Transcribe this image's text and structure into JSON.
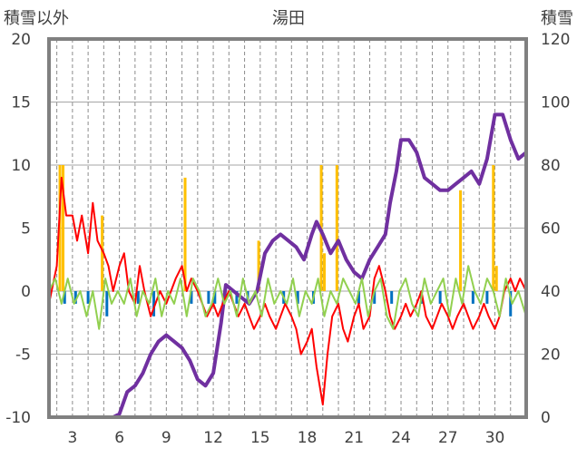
{
  "chart_data": {
    "type": "line",
    "title": "湯田",
    "y_left": {
      "label": "積雪以外",
      "range": [
        -10,
        20
      ],
      "ticks": [
        -10,
        -5,
        0,
        5,
        10,
        15,
        20
      ]
    },
    "y_right": {
      "label": "積雪",
      "range": [
        0,
        120
      ],
      "ticks": [
        0,
        20,
        40,
        60,
        80,
        100,
        120
      ]
    },
    "x": {
      "range": [
        1.5,
        32
      ],
      "tick_values": [
        3,
        6,
        9,
        12,
        15,
        18,
        21,
        24,
        27,
        30
      ],
      "tick_labels": [
        "3",
        "6",
        "9",
        "12",
        "15",
        "18",
        "21",
        "24",
        "27",
        "30"
      ]
    },
    "grid": {
      "horizontal": "solid",
      "vertical": "dashed-daily"
    },
    "colors": {
      "snow": "#7030A0",
      "red": "#FF0000",
      "green": "#92D050",
      "blue": "#0070C0",
      "orange": "#FFC000",
      "frame": "#808080"
    },
    "series": [
      {
        "axis": "right",
        "color": "#7030A0",
        "style": "thick-line",
        "points": [
          [
            1.5,
            0
          ],
          [
            5.6,
            0
          ],
          [
            6.0,
            1
          ],
          [
            6.5,
            8
          ],
          [
            7.0,
            10
          ],
          [
            7.5,
            14
          ],
          [
            8.0,
            20
          ],
          [
            8.5,
            24
          ],
          [
            9.0,
            26
          ],
          [
            9.5,
            24
          ],
          [
            10.0,
            22
          ],
          [
            10.5,
            18
          ],
          [
            11.0,
            12
          ],
          [
            11.5,
            10
          ],
          [
            12.0,
            14
          ],
          [
            12.5,
            30
          ],
          [
            12.8,
            42
          ],
          [
            13.3,
            40
          ],
          [
            13.8,
            38
          ],
          [
            14.3,
            36
          ],
          [
            14.8,
            40
          ],
          [
            15.3,
            52
          ],
          [
            15.8,
            56
          ],
          [
            16.3,
            58
          ],
          [
            16.8,
            56
          ],
          [
            17.3,
            54
          ],
          [
            17.8,
            50
          ],
          [
            18.3,
            58
          ],
          [
            18.6,
            62
          ],
          [
            19.0,
            58
          ],
          [
            19.5,
            52
          ],
          [
            20.0,
            56
          ],
          [
            20.5,
            50
          ],
          [
            21.0,
            46
          ],
          [
            21.5,
            44
          ],
          [
            22.0,
            50
          ],
          [
            22.5,
            54
          ],
          [
            23.0,
            58
          ],
          [
            23.3,
            68
          ],
          [
            23.7,
            78
          ],
          [
            24.0,
            88
          ],
          [
            24.5,
            88
          ],
          [
            25.0,
            84
          ],
          [
            25.5,
            76
          ],
          [
            26.0,
            74
          ],
          [
            26.5,
            72
          ],
          [
            27.0,
            72
          ],
          [
            27.5,
            74
          ],
          [
            28.0,
            76
          ],
          [
            28.5,
            78
          ],
          [
            29.0,
            74
          ],
          [
            29.5,
            82
          ],
          [
            30.0,
            96
          ],
          [
            30.5,
            96
          ],
          [
            31.0,
            88
          ],
          [
            31.5,
            82
          ],
          [
            32.0,
            84
          ]
        ]
      },
      {
        "axis": "left",
        "color": "#FF0000",
        "style": "thin-line",
        "points": [
          [
            1.5,
            -1
          ],
          [
            2.0,
            2
          ],
          [
            2.3,
            9
          ],
          [
            2.6,
            6
          ],
          [
            3.0,
            6
          ],
          [
            3.3,
            4
          ],
          [
            3.6,
            6
          ],
          [
            4.0,
            3
          ],
          [
            4.3,
            7
          ],
          [
            4.6,
            4
          ],
          [
            5.0,
            3
          ],
          [
            5.3,
            2
          ],
          [
            5.6,
            0
          ],
          [
            6.0,
            2
          ],
          [
            6.3,
            3
          ],
          [
            6.6,
            0
          ],
          [
            7.0,
            -1
          ],
          [
            7.3,
            2
          ],
          [
            7.6,
            0
          ],
          [
            8.0,
            -2
          ],
          [
            8.3,
            -1
          ],
          [
            8.6,
            0
          ],
          [
            9.0,
            -1
          ],
          [
            9.3,
            0
          ],
          [
            9.6,
            1
          ],
          [
            10.0,
            2
          ],
          [
            10.3,
            0
          ],
          [
            10.6,
            1
          ],
          [
            11.0,
            0
          ],
          [
            11.3,
            -1
          ],
          [
            11.6,
            -2
          ],
          [
            12.0,
            -1
          ],
          [
            12.3,
            -2
          ],
          [
            12.6,
            -1
          ],
          [
            13.0,
            0
          ],
          [
            13.3,
            -1
          ],
          [
            13.6,
            -2
          ],
          [
            14.0,
            -1
          ],
          [
            14.3,
            -2
          ],
          [
            14.6,
            -3
          ],
          [
            15.0,
            -2
          ],
          [
            15.3,
            -1
          ],
          [
            15.6,
            -2
          ],
          [
            16.0,
            -3
          ],
          [
            16.3,
            -2
          ],
          [
            16.6,
            -1
          ],
          [
            17.0,
            -2
          ],
          [
            17.3,
            -3
          ],
          [
            17.6,
            -5
          ],
          [
            18.0,
            -4
          ],
          [
            18.3,
            -3
          ],
          [
            18.6,
            -6
          ],
          [
            19.0,
            -9
          ],
          [
            19.3,
            -5
          ],
          [
            19.6,
            -2
          ],
          [
            20.0,
            -1
          ],
          [
            20.3,
            -3
          ],
          [
            20.6,
            -4
          ],
          [
            21.0,
            -2
          ],
          [
            21.3,
            -1
          ],
          [
            21.6,
            -3
          ],
          [
            22.0,
            -2
          ],
          [
            22.3,
            1
          ],
          [
            22.6,
            2
          ],
          [
            23.0,
            0
          ],
          [
            23.3,
            -2
          ],
          [
            23.6,
            -3
          ],
          [
            24.0,
            -2
          ],
          [
            24.3,
            -1
          ],
          [
            24.6,
            -2
          ],
          [
            25.0,
            -1
          ],
          [
            25.3,
            0
          ],
          [
            25.6,
            -2
          ],
          [
            26.0,
            -3
          ],
          [
            26.3,
            -2
          ],
          [
            26.6,
            -1
          ],
          [
            27.0,
            -2
          ],
          [
            27.3,
            -3
          ],
          [
            27.6,
            -2
          ],
          [
            28.0,
            -1
          ],
          [
            28.3,
            -2
          ],
          [
            28.6,
            -3
          ],
          [
            29.0,
            -2
          ],
          [
            29.3,
            -1
          ],
          [
            29.6,
            -2
          ],
          [
            30.0,
            -3
          ],
          [
            30.3,
            -2
          ],
          [
            30.6,
            0
          ],
          [
            31.0,
            1
          ],
          [
            31.3,
            0
          ],
          [
            31.6,
            1
          ],
          [
            32.0,
            0
          ]
        ]
      },
      {
        "axis": "left",
        "color": "#92D050",
        "style": "thin-line",
        "points": [
          [
            1.5,
            0
          ],
          [
            1.9,
            1
          ],
          [
            2.3,
            -1
          ],
          [
            2.7,
            1
          ],
          [
            3.1,
            -1
          ],
          [
            3.5,
            0
          ],
          [
            3.9,
            -2
          ],
          [
            4.3,
            0
          ],
          [
            4.7,
            -3
          ],
          [
            5.1,
            1
          ],
          [
            5.5,
            -1
          ],
          [
            5.9,
            0
          ],
          [
            6.3,
            -1
          ],
          [
            6.7,
            1
          ],
          [
            7.1,
            -2
          ],
          [
            7.5,
            0
          ],
          [
            7.9,
            -1
          ],
          [
            8.3,
            1
          ],
          [
            8.7,
            -2
          ],
          [
            9.1,
            0
          ],
          [
            9.5,
            -1
          ],
          [
            9.9,
            1
          ],
          [
            10.3,
            -2
          ],
          [
            10.7,
            1
          ],
          [
            11.1,
            0
          ],
          [
            11.5,
            -2
          ],
          [
            11.9,
            -1
          ],
          [
            12.3,
            1
          ],
          [
            12.7,
            -1
          ],
          [
            13.1,
            0
          ],
          [
            13.5,
            -2
          ],
          [
            13.9,
            1
          ],
          [
            14.3,
            -1
          ],
          [
            14.7,
            0
          ],
          [
            15.1,
            -2
          ],
          [
            15.5,
            1
          ],
          [
            15.9,
            -1
          ],
          [
            16.3,
            0
          ],
          [
            16.7,
            -1
          ],
          [
            17.1,
            1
          ],
          [
            17.5,
            -2
          ],
          [
            17.9,
            0
          ],
          [
            18.3,
            -1
          ],
          [
            18.7,
            1
          ],
          [
            19.1,
            -2
          ],
          [
            19.5,
            0
          ],
          [
            19.9,
            -1
          ],
          [
            20.3,
            1
          ],
          [
            20.7,
            0
          ],
          [
            21.1,
            -1
          ],
          [
            21.5,
            1
          ],
          [
            21.9,
            -2
          ],
          [
            22.3,
            0
          ],
          [
            22.7,
            1
          ],
          [
            23.1,
            -2
          ],
          [
            23.5,
            -3
          ],
          [
            23.9,
            0
          ],
          [
            24.3,
            1
          ],
          [
            24.7,
            -1
          ],
          [
            25.1,
            -2
          ],
          [
            25.5,
            1
          ],
          [
            25.9,
            -1
          ],
          [
            26.3,
            0
          ],
          [
            26.7,
            1
          ],
          [
            27.1,
            -2
          ],
          [
            27.5,
            1
          ],
          [
            27.9,
            -1
          ],
          [
            28.3,
            2
          ],
          [
            28.7,
            0
          ],
          [
            29.1,
            -1
          ],
          [
            29.5,
            1
          ],
          [
            29.9,
            0
          ],
          [
            30.3,
            -2
          ],
          [
            30.7,
            1
          ],
          [
            31.1,
            -1
          ],
          [
            31.5,
            0
          ],
          [
            32.0,
            -2
          ]
        ]
      },
      {
        "axis": "left",
        "color": "#0070C0",
        "style": "bars",
        "bars": [
          [
            2.5,
            -1
          ],
          [
            3.2,
            -1
          ],
          [
            4.0,
            -1
          ],
          [
            5.2,
            -2
          ],
          [
            7.2,
            -1
          ],
          [
            8.2,
            -2
          ],
          [
            10.6,
            -1
          ],
          [
            11.7,
            -1
          ],
          [
            12.1,
            -1
          ],
          [
            13.5,
            -1
          ],
          [
            14.2,
            -1
          ],
          [
            16.5,
            -1
          ],
          [
            17.4,
            -1
          ],
          [
            18.4,
            -1
          ],
          [
            21.3,
            -1
          ],
          [
            22.3,
            -1
          ],
          [
            23.4,
            -1
          ],
          [
            25.3,
            -1
          ],
          [
            26.5,
            -1
          ],
          [
            28.6,
            -1
          ],
          [
            29.5,
            -1
          ],
          [
            31.0,
            -2
          ]
        ]
      },
      {
        "axis": "left",
        "color": "#FFC000",
        "style": "bars",
        "bars": [
          [
            2.2,
            10
          ],
          [
            2.4,
            10
          ],
          [
            4.9,
            6
          ],
          [
            10.2,
            9
          ],
          [
            14.9,
            4
          ],
          [
            18.9,
            10
          ],
          [
            19.1,
            3
          ],
          [
            19.9,
            10
          ],
          [
            27.8,
            8
          ],
          [
            29.9,
            10
          ],
          [
            30.1,
            2
          ]
        ]
      }
    ]
  }
}
